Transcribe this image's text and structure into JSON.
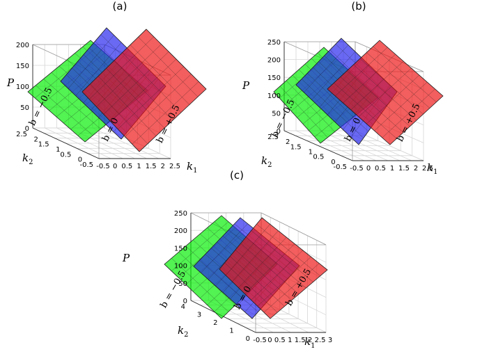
{
  "chart_data": [
    {
      "panel": "(a)",
      "type": "surface-3d-planes",
      "zlabel": "P",
      "xlabel": "k1",
      "ylabel": "k2",
      "x_var": "k",
      "x_sub": "1",
      "y_var": "k",
      "y_sub": "2",
      "zticks": [
        "0",
        "50",
        "100",
        "150",
        "200"
      ],
      "xticks": [
        "-0.5",
        "0",
        "0.5",
        "1",
        "1.5",
        "2",
        "2.5"
      ],
      "yticks": [
        "-0.5",
        "0",
        "0.5",
        "1",
        "1.5",
        "2",
        "2.5"
      ],
      "zlim": [
        0,
        200
      ],
      "xlim": [
        -0.5,
        2.5
      ],
      "ylim": [
        -0.5,
        2.5
      ],
      "series": [
        {
          "name": "b = −0.5",
          "color": "#00ee00"
        },
        {
          "name": "b = 0",
          "color": "#2222ee"
        },
        {
          "name": "b = +0.5",
          "color": "#ee1111"
        }
      ]
    },
    {
      "panel": "(b)",
      "type": "surface-3d-planes",
      "zlabel": "P",
      "xlabel": "k1",
      "ylabel": "k2",
      "x_var": "k",
      "x_sub": "1",
      "y_var": "k",
      "y_sub": "2",
      "zticks": [
        "0",
        "50",
        "100",
        "150",
        "200",
        "250"
      ],
      "xticks": [
        "-0.5",
        "0",
        "0.5",
        "1",
        "1.5",
        "2",
        "2.5"
      ],
      "yticks": [
        "-0.5",
        "0",
        "0.5",
        "1",
        "1.5",
        "2",
        "2.5"
      ],
      "zlim": [
        0,
        250
      ],
      "xlim": [
        -0.5,
        2.5
      ],
      "ylim": [
        -0.5,
        2.5
      ],
      "series": [
        {
          "name": "b = −0.5",
          "color": "#00ee00"
        },
        {
          "name": "b = 0",
          "color": "#2222ee"
        },
        {
          "name": "b = +0.5",
          "color": "#ee1111"
        }
      ]
    },
    {
      "panel": "(c)",
      "type": "surface-3d-planes",
      "zlabel": "P",
      "xlabel": "k1",
      "ylabel": "k2",
      "x_var": "k",
      "x_sub": "1",
      "y_var": "k",
      "y_sub": "2",
      "zticks": [
        "0",
        "50",
        "100",
        "150",
        "200",
        "250"
      ],
      "xticks": [
        "-0.5",
        "0",
        "0.5",
        "1",
        "1.5",
        "2",
        "2.5",
        "3"
      ],
      "yticks": [
        "0",
        "1",
        "2",
        "3",
        "4"
      ],
      "zlim": [
        0,
        250
      ],
      "xlim": [
        -0.5,
        3
      ],
      "ylim": [
        0,
        4
      ],
      "series": [
        {
          "name": "b = −0.5",
          "color": "#00ee00"
        },
        {
          "name": "b = 0",
          "color": "#2222ee"
        },
        {
          "name": "b = +0.5",
          "color": "#ee1111"
        }
      ]
    }
  ]
}
